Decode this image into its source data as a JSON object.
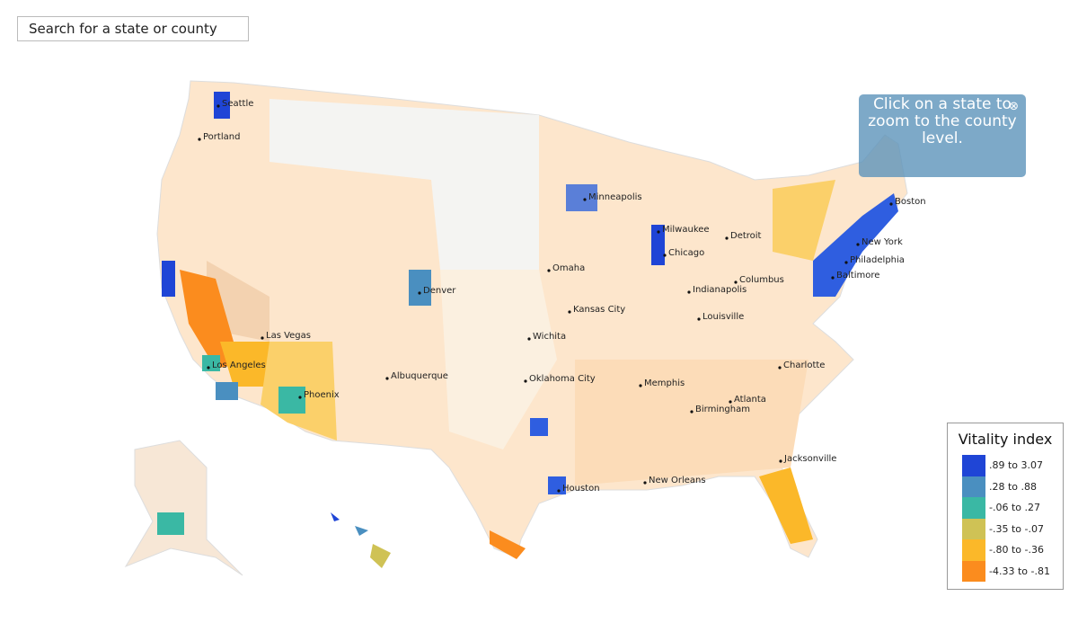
{
  "search": {
    "placeholder": "Search for a state or county"
  },
  "hint": {
    "text": "Click on a state to zoom to the county level."
  },
  "map": {
    "cities": [
      {
        "label": "Seattle"
      },
      {
        "label": "Portland"
      },
      {
        "label": "Minneapolis"
      },
      {
        "label": "Milwaukee"
      },
      {
        "label": "Detroit"
      },
      {
        "label": "Chicago"
      },
      {
        "label": "Boston"
      },
      {
        "label": "New York"
      },
      {
        "label": "Philadelphia"
      },
      {
        "label": "Baltimore"
      },
      {
        "label": "Omaha"
      },
      {
        "label": "Denver"
      },
      {
        "label": "Columbus"
      },
      {
        "label": "Indianapolis"
      },
      {
        "label": "Kansas City"
      },
      {
        "label": "Louisville"
      },
      {
        "label": "Wichita"
      },
      {
        "label": "Las Vegas"
      },
      {
        "label": "Los Angeles"
      },
      {
        "label": "Charlotte"
      },
      {
        "label": "Albuquerque"
      },
      {
        "label": "Oklahoma City"
      },
      {
        "label": "Memphis"
      },
      {
        "label": "Phoenix"
      },
      {
        "label": "Atlanta"
      },
      {
        "label": "Birmingham"
      },
      {
        "label": "Jacksonville"
      },
      {
        "label": "Houston"
      },
      {
        "label": "New Orleans"
      }
    ]
  },
  "legend": {
    "title": "Vitality index",
    "items": [
      {
        "label": ".89 to 3.07",
        "color": "#1f45d6"
      },
      {
        "label": ".28 to .88",
        "color": "#4a8fc0"
      },
      {
        "label": "-.06 to .27",
        "color": "#3ab8a4"
      },
      {
        "label": "-.35 to -.07",
        "color": "#cfc255"
      },
      {
        "label": "-.80 to -.36",
        "color": "#fbb829"
      },
      {
        "label": "-4.33 to -.81",
        "color": "#fb8c1e"
      }
    ]
  }
}
